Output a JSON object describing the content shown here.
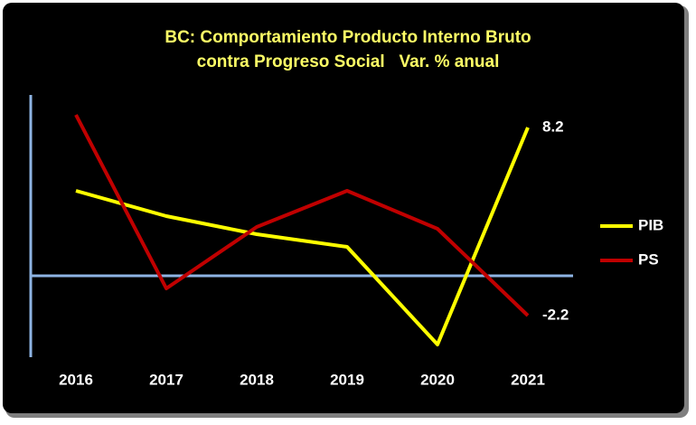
{
  "chart_data": {
    "type": "line",
    "title": [
      "BC: Comportamiento Producto Interno Bruto",
      "contra Progreso Social   Var. % anual"
    ],
    "categories": [
      "2016",
      "2017",
      "2018",
      "2019",
      "2020",
      "2021"
    ],
    "series": [
      {
        "name": "PIB",
        "color": "#ffff00",
        "values": [
          4.7,
          3.3,
          2.3,
          1.6,
          -3.8,
          8.2
        ]
      },
      {
        "name": "PS",
        "color": "#c00000",
        "values": [
          8.9,
          -0.7,
          2.7,
          4.7,
          2.6,
          -2.2
        ]
      }
    ],
    "ylim": [
      -4.5,
      10
    ],
    "legend": "right"
  }
}
